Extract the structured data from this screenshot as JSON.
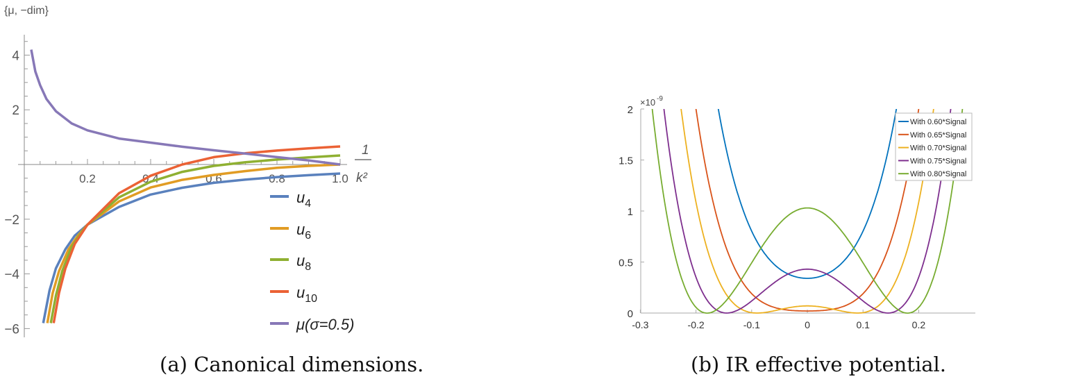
{
  "chart_data": [
    {
      "type": "line",
      "caption": "(a) Canonical dimensions.",
      "ylabel": "{μ, −dim}",
      "xlabel_num": "1",
      "xlabel_den": "k²",
      "xlim": [
        0,
        1.02
      ],
      "ylim": [
        -6.1,
        4.7
      ],
      "xticks": [
        0.2,
        0.4,
        0.6,
        0.8,
        1.0
      ],
      "xtick_labels": [
        "0.2",
        "0.4",
        "0.6",
        "0.8",
        "1.0"
      ],
      "yticks": [
        4,
        2,
        -2,
        -4,
        -6
      ],
      "ytick_labels": [
        "4",
        "2",
        "−2",
        "−4",
        "−6"
      ],
      "legend_position": "bottom-right",
      "series": [
        {
          "name": "u",
          "sub": "4",
          "color": "#5a81bd",
          "x": [
            0.06,
            0.08,
            0.1,
            0.13,
            0.16,
            0.2,
            0.3,
            0.4,
            0.5,
            0.6,
            0.7,
            0.8,
            0.9,
            1.0
          ],
          "y": [
            -5.8,
            -4.6,
            -3.8,
            -3.1,
            -2.6,
            -2.2,
            -1.55,
            -1.1,
            -0.85,
            -0.67,
            -0.55,
            -0.46,
            -0.39,
            -0.33
          ]
        },
        {
          "name": "u",
          "sub": "6",
          "color": "#e19c24",
          "x": [
            0.073,
            0.09,
            0.11,
            0.14,
            0.17,
            0.2,
            0.3,
            0.4,
            0.5,
            0.6,
            0.7,
            0.8,
            0.9,
            1.0
          ],
          "y": [
            -5.8,
            -4.7,
            -3.9,
            -3.1,
            -2.6,
            -2.2,
            -1.35,
            -0.84,
            -0.56,
            -0.38,
            -0.24,
            -0.12,
            -0.05,
            0.0
          ]
        },
        {
          "name": "u",
          "sub": "8",
          "color": "#8fb032",
          "x": [
            0.084,
            0.1,
            0.12,
            0.15,
            0.18,
            0.2,
            0.3,
            0.4,
            0.5,
            0.6,
            0.7,
            0.8,
            0.9,
            1.0
          ],
          "y": [
            -5.8,
            -4.8,
            -3.9,
            -3.0,
            -2.5,
            -2.2,
            -1.2,
            -0.63,
            -0.27,
            -0.05,
            0.08,
            0.18,
            0.26,
            0.33
          ]
        },
        {
          "name": "u",
          "sub": "10",
          "color": "#eb6235",
          "x": [
            0.093,
            0.11,
            0.13,
            0.16,
            0.2,
            0.3,
            0.4,
            0.5,
            0.6,
            0.7,
            0.8,
            0.9,
            1.0
          ],
          "y": [
            -5.8,
            -4.7,
            -3.8,
            -2.9,
            -2.2,
            -1.05,
            -0.41,
            0.0,
            0.27,
            0.41,
            0.51,
            0.59,
            0.66
          ]
        },
        {
          "name": "μ(σ=0.5)",
          "sub": "",
          "color": "#8778b7",
          "x": [
            0.022,
            0.035,
            0.05,
            0.07,
            0.1,
            0.15,
            0.2,
            0.3,
            0.4,
            0.5,
            0.6,
            0.7,
            0.8,
            0.9,
            1.0
          ],
          "y": [
            4.2,
            3.4,
            2.9,
            2.4,
            1.95,
            1.5,
            1.25,
            0.95,
            0.8,
            0.65,
            0.52,
            0.4,
            0.27,
            0.15,
            0.0
          ]
        }
      ]
    },
    {
      "type": "line",
      "caption": "(b) IR effective potential.",
      "y_multiplier": "×10",
      "y_multiplier_exp": "-9",
      "xlim": [
        -0.3,
        0.3
      ],
      "ylim": [
        0,
        2
      ],
      "xticks": [
        -0.3,
        -0.2,
        -0.1,
        0,
        0.1,
        0.2
      ],
      "xtick_labels": [
        "-0.3",
        "-0.2",
        "-0.1",
        "0",
        "0.1",
        "0.2"
      ],
      "yticks": [
        0,
        0.5,
        1,
        1.5,
        2
      ],
      "ytick_labels": [
        "0",
        "0.5",
        "1",
        "1.5",
        "2"
      ],
      "legend_position": "top-right",
      "model": "y = c0 + c2*x^2 + c4*x^4 (units of 1e-9)",
      "series": [
        {
          "name": "With 0.60*Signal",
          "color": "#0072bd",
          "c0": 0.34,
          "c2": 34.3,
          "c4": 1196
        },
        {
          "name": "With 0.65*Signal",
          "color": "#d95319",
          "c0": 0.02,
          "c2": 6.17,
          "c4": 1083
        },
        {
          "name": "With 0.70*Signal",
          "color": "#edb120",
          "c0": 0.07,
          "c2": -17.3,
          "c4": 1067
        },
        {
          "name": "With 0.75*Signal",
          "color": "#7e2f8e",
          "c0": 0.43,
          "c2": -40.9,
          "c4": 973
        },
        {
          "name": "With 0.80*Signal",
          "color": "#77ac30",
          "c0": 1.03,
          "c2": -63.6,
          "c4": 981
        }
      ]
    }
  ]
}
